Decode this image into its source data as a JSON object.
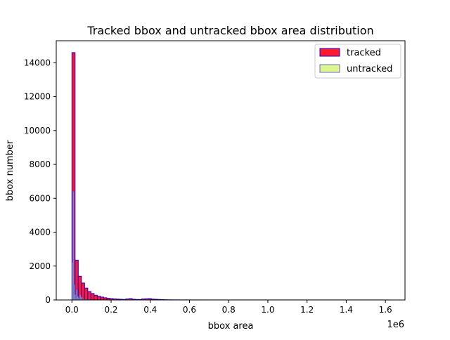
{
  "chart_data": {
    "type": "histogram",
    "title": "Tracked bbox and untracked bbox area distribution",
    "xlabel": "bbox area",
    "ylabel": "bbox number",
    "x_scale_label": "1e6",
    "xlim": [
      -80000,
      1700000
    ],
    "ylim": [
      0,
      15300
    ],
    "xticks": [
      0,
      200000,
      400000,
      600000,
      800000,
      1000000,
      1200000,
      1400000,
      1600000
    ],
    "xtick_labels": [
      "0.0",
      "0.2",
      "0.4",
      "0.6",
      "0.8",
      "1.0",
      "1.2",
      "1.4",
      "1.6"
    ],
    "yticks": [
      0,
      2000,
      4000,
      6000,
      8000,
      10000,
      12000,
      14000
    ],
    "ytick_labels": [
      "0",
      "2000",
      "4000",
      "6000",
      "8000",
      "10000",
      "12000",
      "14000"
    ],
    "grid": false,
    "legend_position": "upper right",
    "series": [
      {
        "name": "tracked",
        "fill": "#ff1a2e",
        "edge": "#2200cc",
        "bin_start": 0,
        "bin_width": 16200,
        "counts": [
          14600,
          2350,
          1400,
          1000,
          700,
          500,
          380,
          280,
          220,
          170,
          130,
          100,
          80,
          60,
          50,
          40,
          30,
          60,
          80,
          40,
          30,
          25,
          60,
          70,
          80,
          50,
          40,
          30,
          20,
          15,
          10,
          8,
          6,
          6,
          5,
          5,
          4,
          4,
          3,
          3,
          3,
          3,
          2,
          2,
          2,
          2,
          2,
          2,
          2,
          2,
          2,
          2,
          2,
          2,
          2,
          2,
          2,
          2,
          2,
          2,
          2,
          2,
          2,
          2,
          2,
          2,
          2,
          2,
          2,
          2,
          2,
          2,
          2,
          2,
          2,
          2,
          2,
          2,
          2,
          2,
          2,
          2,
          2,
          2,
          2,
          2,
          2,
          2,
          2,
          2,
          2,
          2,
          2,
          2,
          2,
          2,
          2,
          2,
          2,
          2
        ]
      },
      {
        "name": "untracked",
        "fill": "#ddf58a",
        "edge": "#6a6acc",
        "alpha": 0.85,
        "bin_start": 0,
        "bin_width": 4500,
        "counts": [
          2200,
          6400,
          900,
          300,
          150,
          600,
          200,
          120,
          80,
          300,
          150,
          60,
          40,
          30,
          20,
          15,
          10,
          8,
          6,
          5
        ]
      }
    ]
  }
}
